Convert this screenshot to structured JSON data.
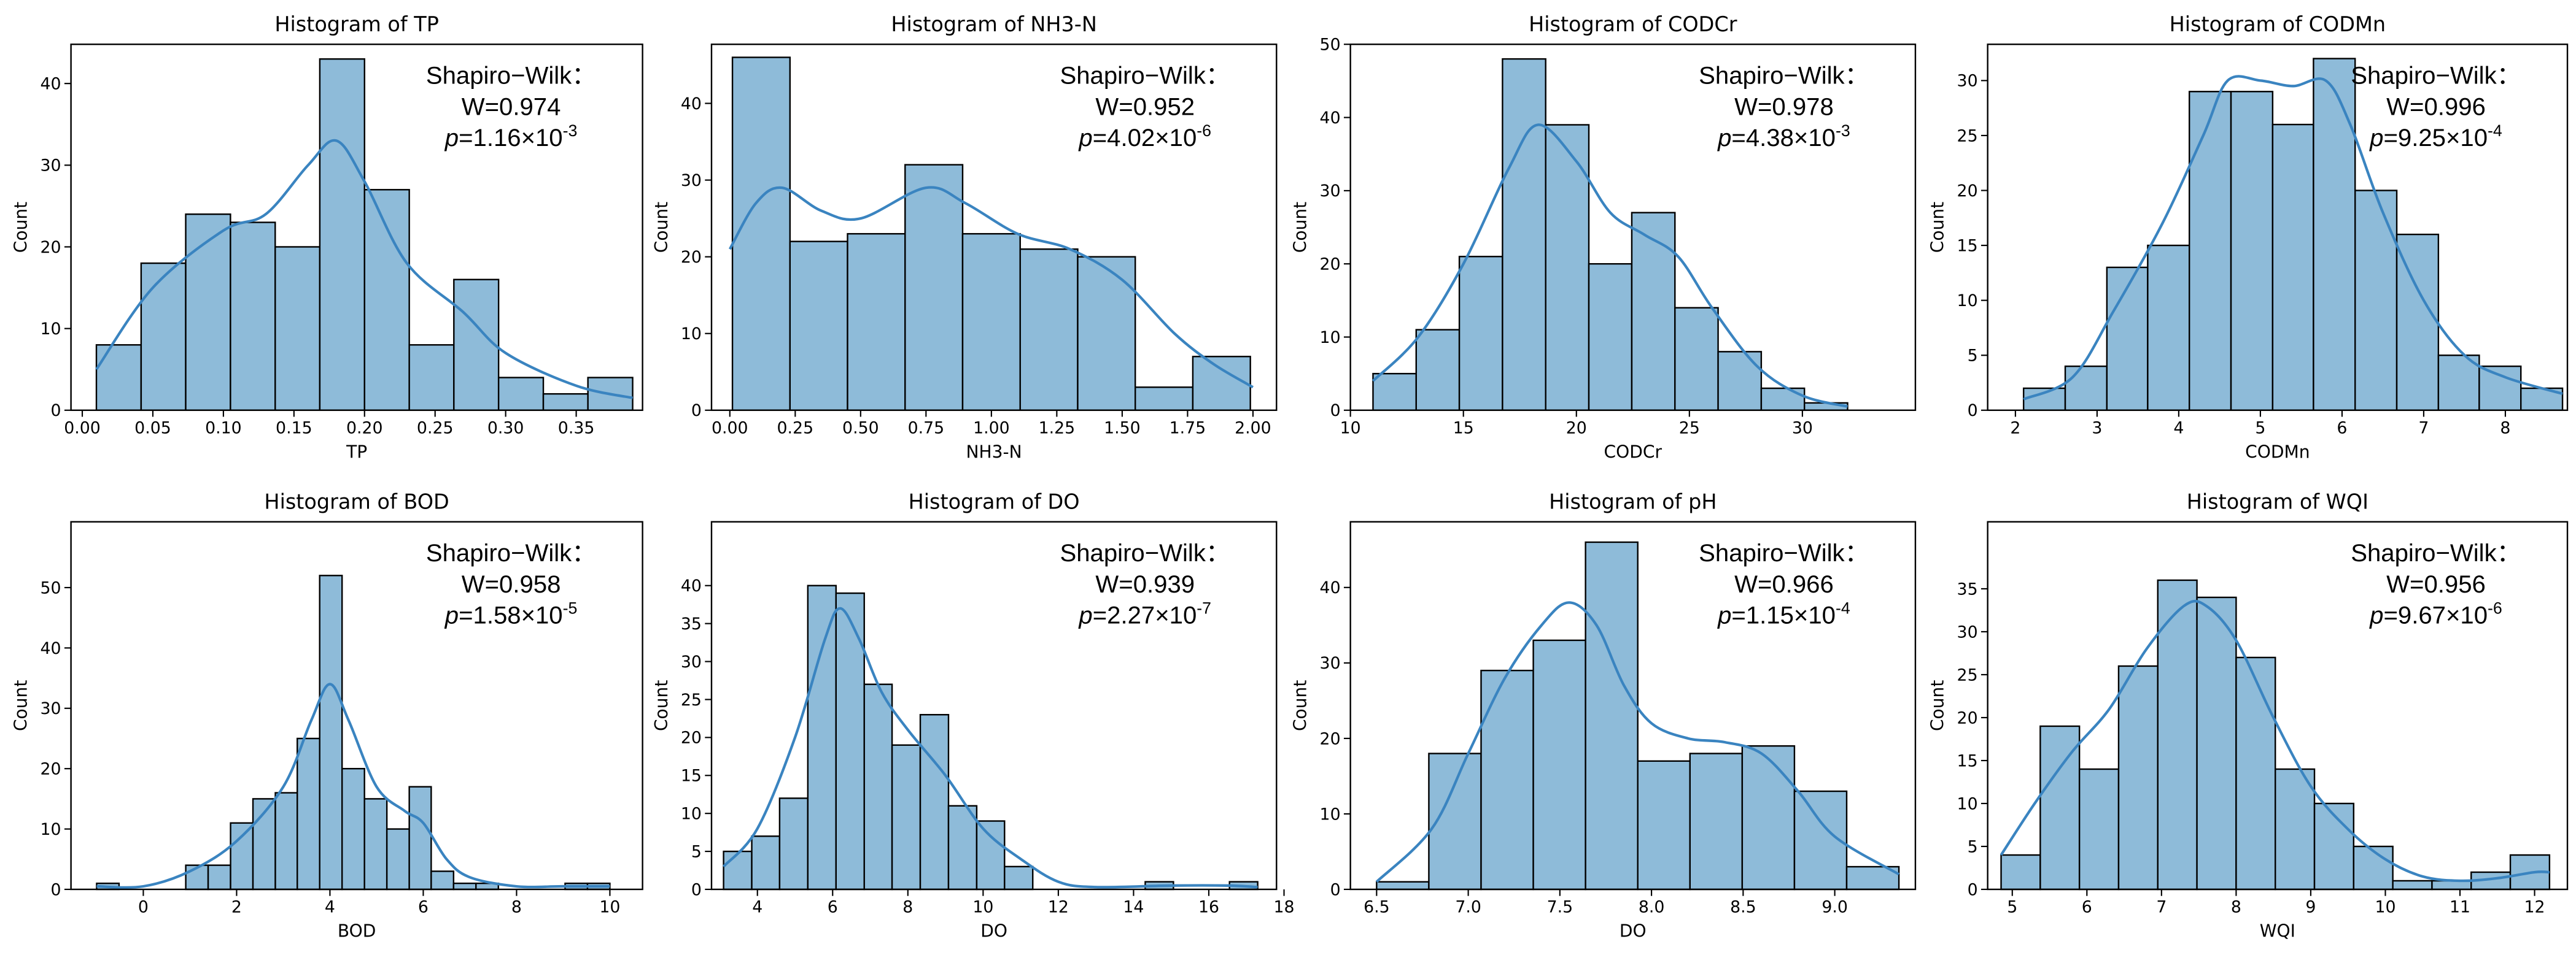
{
  "chart_data": [
    {
      "type": "histogram",
      "title": "Histogram of TP",
      "xlabel": "TP",
      "ylabel": "Count",
      "color": "#8ebbd9",
      "line_color": "#3a84c0",
      "bins": [
        0.01,
        0.0417,
        0.0733,
        0.105,
        0.1367,
        0.1683,
        0.2,
        0.2317,
        0.2633,
        0.295,
        0.3267,
        0.3583,
        0.39
      ],
      "values": [
        8,
        18,
        24,
        23,
        20,
        43,
        27,
        8,
        16,
        4,
        2,
        4
      ],
      "kde": {
        "x": [
          0.01,
          0.05,
          0.1,
          0.13,
          0.16,
          0.18,
          0.2,
          0.23,
          0.27,
          0.3,
          0.35,
          0.39
        ],
        "values": [
          5,
          15,
          22,
          24,
          30,
          33,
          28,
          18,
          12,
          7,
          3,
          1.5
        ]
      },
      "xlim": [
        -0.008,
        0.397
      ],
      "ylim": [
        0,
        44.8
      ],
      "xticks": [
        {
          "value": 0,
          "label": "0.00"
        },
        {
          "value": 0.05,
          "label": "0.05"
        },
        {
          "value": 0.1,
          "label": "0.10"
        },
        {
          "value": 0.15,
          "label": "0.15"
        },
        {
          "value": 0.2,
          "label": "0.20"
        },
        {
          "value": 0.25,
          "label": "0.25"
        },
        {
          "value": 0.3,
          "label": "0.30"
        },
        {
          "value": 0.35,
          "label": "0.35"
        }
      ],
      "yticks": [
        0,
        10,
        20,
        30,
        40
      ],
      "annotation": {
        "heading": "Shapiro−Wilk：",
        "w": "W=0.974",
        "p_label": "p",
        "p_text": "=1.16×10",
        "p_exp": "-3"
      }
    },
    {
      "type": "histogram",
      "title": "Histogram of NH3-N",
      "xlabel": "NH3-N",
      "ylabel": "Count",
      "color": "#8ebbd9",
      "line_color": "#3a84c0",
      "bins": [
        0.01,
        0.23,
        0.45,
        0.67,
        0.89,
        1.11,
        1.33,
        1.55,
        1.77,
        1.99
      ],
      "values": [
        46,
        22,
        23,
        32,
        23,
        21,
        20,
        3,
        7
      ],
      "kde": {
        "x": [
          0,
          0.1,
          0.2,
          0.35,
          0.5,
          0.75,
          0.9,
          1.1,
          1.3,
          1.5,
          1.7,
          1.85,
          2.0
        ],
        "values": [
          21,
          27,
          29,
          26,
          25,
          29,
          27,
          23,
          21,
          17,
          10,
          6,
          3
        ]
      },
      "xlim": [
        -0.07,
        2.09
      ],
      "ylim": [
        0,
        47.7
      ],
      "xticks": [
        {
          "value": 0,
          "label": "0.00"
        },
        {
          "value": 0.25,
          "label": "0.25"
        },
        {
          "value": 0.5,
          "label": "0.50"
        },
        {
          "value": 0.75,
          "label": "0.75"
        },
        {
          "value": 1,
          "label": "1.00"
        },
        {
          "value": 1.25,
          "label": "1.25"
        },
        {
          "value": 1.5,
          "label": "1.50"
        },
        {
          "value": 1.75,
          "label": "1.75"
        },
        {
          "value": 2,
          "label": "2.00"
        }
      ],
      "yticks": [
        0,
        10,
        20,
        30,
        40
      ],
      "annotation": {
        "heading": "Shapiro−Wilk：",
        "w": "W=0.952",
        "p_label": "p",
        "p_text": "=4.02×10",
        "p_exp": "-6"
      }
    },
    {
      "type": "histogram",
      "title": "Histogram of CODCr",
      "xlabel": "CODCr",
      "ylabel": "Count",
      "color": "#8ebbd9",
      "line_color": "#3a84c0",
      "bins": [
        11,
        12.91,
        14.82,
        16.73,
        18.64,
        20.55,
        22.45,
        24.36,
        26.27,
        28.18,
        30.09,
        32
      ],
      "values": [
        5,
        11,
        21,
        48,
        39,
        20,
        27,
        14,
        8,
        3,
        1
      ],
      "kde": {
        "x": [
          11,
          13,
          15,
          17,
          18.3,
          20,
          21.5,
          23,
          24.5,
          26,
          28,
          30,
          32
        ],
        "values": [
          4,
          10,
          20,
          33,
          39,
          34,
          27,
          24,
          21,
          14,
          6,
          2,
          0.5
        ]
      },
      "xlim": [
        10,
        35
      ],
      "ylim": [
        0,
        50
      ],
      "xticks": [
        10,
        15,
        20,
        25,
        30
      ],
      "yticks": [
        0,
        10,
        20,
        30,
        40,
        50
      ],
      "annotation": {
        "heading": "Shapiro−Wilk：",
        "w": "W=0.978",
        "p_label": "p",
        "p_text": "=4.38×10",
        "p_exp": "-3"
      }
    },
    {
      "type": "histogram",
      "title": "Histogram of CODMn",
      "xlabel": "CODMn",
      "ylabel": "Count",
      "color": "#8ebbd9",
      "line_color": "#3a84c0",
      "bins": [
        2.1,
        2.61,
        3.12,
        3.62,
        4.13,
        4.64,
        5.15,
        5.65,
        6.16,
        6.67,
        7.18,
        7.68,
        8.19,
        8.7
      ],
      "values": [
        2,
        4,
        13,
        15,
        29,
        29,
        26,
        32,
        20,
        16,
        5,
        4,
        2
      ],
      "kde": {
        "x": [
          2.1,
          2.7,
          3.2,
          3.8,
          4.3,
          4.6,
          5.0,
          5.4,
          5.8,
          6.1,
          6.5,
          7,
          7.5,
          8,
          8.7
        ],
        "values": [
          1,
          3,
          9,
          17,
          25,
          30,
          30,
          29.5,
          30,
          26,
          18,
          10,
          5,
          3,
          1.5
        ]
      },
      "xlim": [
        1.66,
        8.76
      ],
      "ylim": [
        0,
        33.3
      ],
      "xticks": [
        2,
        3,
        4,
        5,
        6,
        7,
        8
      ],
      "yticks": [
        0,
        5,
        10,
        15,
        20,
        25,
        30
      ],
      "annotation": {
        "heading": "Shapiro−Wilk：",
        "w": "W=0.996",
        "p_label": "p",
        "p_text": "=9.25×10",
        "p_exp": "-4"
      }
    },
    {
      "type": "histogram",
      "title": "Histogram of BOD",
      "xlabel": "BOD",
      "ylabel": "Count",
      "color": "#8ebbd9",
      "line_color": "#3a84c0",
      "bins": [
        -1,
        -0.52,
        -0.04,
        0.43,
        0.91,
        1.39,
        1.87,
        2.35,
        2.83,
        3.3,
        3.78,
        4.26,
        4.74,
        5.22,
        5.7,
        6.17,
        6.65,
        7.13,
        7.61,
        8.09,
        8.57,
        9.04,
        9.52,
        10
      ],
      "values": [
        1,
        0,
        0,
        0,
        4,
        4,
        11,
        15,
        16,
        25,
        52,
        20,
        15,
        10,
        17,
        3,
        1,
        1,
        0,
        0,
        0,
        1,
        1
      ],
      "kde": {
        "x": [
          -1,
          0,
          1,
          2,
          3,
          3.6,
          4,
          4.4,
          5,
          5.6,
          6,
          6.5,
          7,
          8,
          9,
          10
        ],
        "values": [
          0.5,
          0.5,
          3,
          8,
          17,
          28,
          34,
          28,
          17,
          13,
          11,
          5,
          2,
          0.5,
          0.5,
          0.5
        ]
      },
      "xlim": [
        -1.55,
        10.7
      ],
      "ylim": [
        0,
        60.9
      ],
      "xticks": [
        0,
        2,
        4,
        6,
        8,
        10
      ],
      "yticks": [
        0,
        10,
        20,
        30,
        40,
        50
      ],
      "annotation": {
        "heading": "Shapiro−Wilk：",
        "w": "W=0.958",
        "p_label": "p",
        "p_text": "=1.58×10",
        "p_exp": "-5"
      }
    },
    {
      "type": "histogram",
      "title": "Histogram of DO",
      "xlabel": "DO",
      "ylabel": "Count",
      "color": "#8ebbd9",
      "line_color": "#3a84c0",
      "bins": [
        3.1,
        3.85,
        4.59,
        5.34,
        6.09,
        6.84,
        7.58,
        8.33,
        9.08,
        9.83,
        10.57,
        11.32,
        12.07,
        12.82,
        13.56,
        14.31,
        15.06,
        15.81,
        16.55,
        17.3
      ],
      "values": [
        5,
        7,
        12,
        40,
        39,
        27,
        19,
        23,
        11,
        9,
        3,
        0,
        0,
        0,
        0,
        1,
        0,
        0,
        1
      ],
      "kde": {
        "x": [
          3.1,
          4,
          5,
          5.8,
          6.2,
          6.7,
          7.3,
          8,
          9,
          10,
          11,
          12,
          13,
          15,
          16.5,
          17.3
        ],
        "values": [
          3,
          8,
          20,
          33,
          37,
          33,
          26,
          21,
          15,
          8,
          4,
          1,
          0.3,
          0.5,
          0.5,
          0.3
        ]
      },
      "xlim": [
        2.78,
        17.8
      ],
      "ylim": [
        0,
        48.4
      ],
      "xticks": [
        4,
        6,
        8,
        10,
        12,
        14,
        16,
        18
      ],
      "yticks": [
        0,
        5,
        10,
        15,
        20,
        25,
        30,
        35,
        40
      ],
      "annotation": {
        "heading": "Shapiro−Wilk：",
        "w": "W=0.939",
        "p_label": "p",
        "p_text": "=2.27×10",
        "p_exp": "-7"
      }
    },
    {
      "type": "histogram",
      "title": "Histogram of pH",
      "xlabel": "DO",
      "ylabel": "Count",
      "color": "#8ebbd9",
      "line_color": "#3a84c0",
      "bins": [
        6.5,
        6.785,
        7.07,
        7.355,
        7.64,
        7.925,
        8.21,
        8.495,
        8.78,
        9.065,
        9.35
      ],
      "values": [
        1,
        18,
        29,
        33,
        46,
        17,
        18,
        19,
        13,
        3
      ],
      "kde": {
        "x": [
          6.5,
          6.8,
          7.0,
          7.2,
          7.4,
          7.55,
          7.7,
          7.85,
          8.0,
          8.2,
          8.4,
          8.6,
          8.8,
          9.0,
          9.35
        ],
        "values": [
          1,
          8,
          18,
          28,
          35,
          38,
          35,
          27,
          22,
          20,
          19.5,
          18,
          13,
          7,
          2
        ]
      },
      "xlim": [
        6.357,
        9.44
      ],
      "ylim": [
        0,
        48.7
      ],
      "xticks": [
        6.5,
        {
          "value": 7,
          "label": "7.0"
        },
        7.5,
        {
          "value": 8,
          "label": "8.0"
        },
        8.5,
        {
          "value": 9,
          "label": "9.0"
        }
      ],
      "yticks": [
        0,
        10,
        20,
        30,
        40
      ],
      "annotation": {
        "heading": "Shapiro−Wilk：",
        "w": "W=0.966",
        "p_label": "p",
        "p_text": "=1.15×10",
        "p_exp": "-4"
      }
    },
    {
      "type": "histogram",
      "title": "Histogram of WQI",
      "xlabel": "WQI",
      "ylabel": "Count",
      "color": "#8ebbd9",
      "line_color": "#3a84c0",
      "bins": [
        4.85,
        5.375,
        5.9,
        6.425,
        6.95,
        7.475,
        8.0,
        8.525,
        9.05,
        9.575,
        10.1,
        10.625,
        11.15,
        11.675,
        12.2
      ],
      "values": [
        4,
        19,
        14,
        26,
        36,
        34,
        27,
        14,
        10,
        5,
        1,
        1,
        2,
        4
      ],
      "kde": {
        "x": [
          4.85,
          5.3,
          5.8,
          6.3,
          6.8,
          7.3,
          7.6,
          8,
          8.5,
          9,
          9.5,
          10,
          10.5,
          11,
          11.5,
          12,
          12.2
        ],
        "values": [
          4,
          10,
          16,
          21,
          28,
          33,
          33,
          29,
          20,
          12,
          7,
          3.5,
          1.5,
          1,
          1.3,
          2,
          2
        ]
      },
      "xlim": [
        4.67,
        12.44
      ],
      "ylim": [
        0,
        42.8
      ],
      "xticks": [
        5,
        6,
        7,
        8,
        9,
        10,
        11,
        12
      ],
      "yticks": [
        0,
        5,
        10,
        15,
        20,
        25,
        30,
        35
      ],
      "annotation": {
        "heading": "Shapiro−Wilk：",
        "w": "W=0.956",
        "p_label": "p",
        "p_text": "=9.67×10",
        "p_exp": "-6"
      }
    }
  ]
}
